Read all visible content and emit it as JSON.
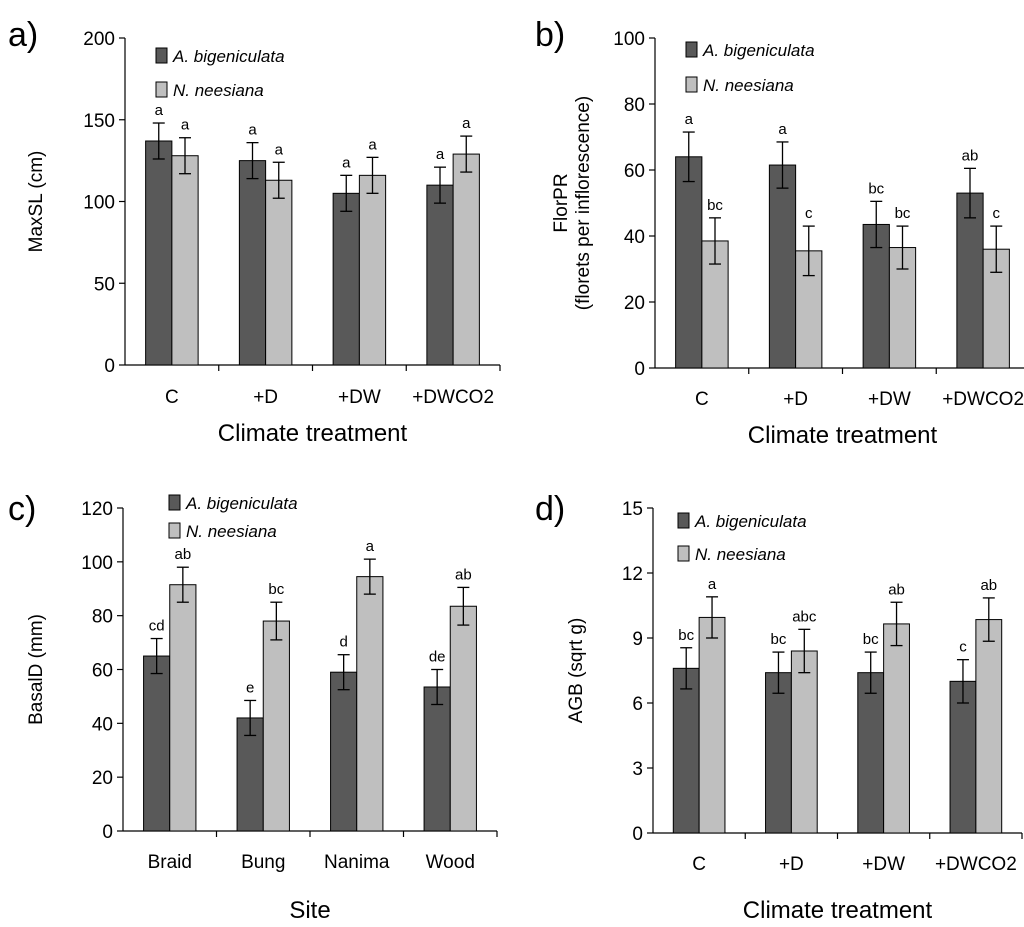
{
  "chart_data": [
    {
      "type": "bar",
      "panel": "a)",
      "title": "",
      "xlabel": "Climate treatment",
      "ylabel": [
        "MaxSL (cm)"
      ],
      "ylim": [
        0,
        200
      ],
      "yticks": [
        0,
        50,
        100,
        150,
        200
      ],
      "categories": [
        "C",
        "+D",
        "+DW",
        "+DWCO2"
      ],
      "legend_position": "top-left",
      "series": [
        {
          "name": "A. bigeniculata",
          "color": "#595959",
          "values": [
            137,
            125,
            105,
            110
          ],
          "errors": [
            11,
            11,
            11,
            11
          ],
          "letters": [
            "a",
            "a",
            "a",
            "a"
          ]
        },
        {
          "name": "N. neesiana",
          "color": "#bfbfbf",
          "values": [
            128,
            113,
            116,
            129
          ],
          "errors": [
            11,
            11,
            11,
            11
          ],
          "letters": [
            "a",
            "a",
            "a",
            "a"
          ]
        }
      ]
    },
    {
      "type": "bar",
      "panel": "b)",
      "title": "",
      "xlabel": "Climate treatment",
      "ylabel": [
        "FlorPR",
        "(florets  per inflorescence)"
      ],
      "ylim": [
        0,
        100
      ],
      "yticks": [
        0,
        20,
        40,
        60,
        80,
        100
      ],
      "categories": [
        "C",
        "+D",
        "+DW",
        "+DWCO2"
      ],
      "legend_position": "top-left",
      "series": [
        {
          "name": "A. bigeniculata",
          "color": "#595959",
          "values": [
            64,
            61.5,
            43.5,
            53
          ],
          "errors": [
            7.5,
            7,
            7,
            7.5
          ],
          "letters": [
            "a",
            "a",
            "bc",
            "ab"
          ]
        },
        {
          "name": "N. neesiana",
          "color": "#bfbfbf",
          "values": [
            38.5,
            35.5,
            36.5,
            36
          ],
          "errors": [
            7,
            7.5,
            6.5,
            7
          ],
          "letters": [
            "bc",
            "c",
            "bc",
            "c"
          ]
        }
      ]
    },
    {
      "type": "bar",
      "panel": "c)",
      "title": "",
      "xlabel": "Site",
      "ylabel": [
        "BasalD (mm)"
      ],
      "ylim": [
        0,
        120
      ],
      "yticks": [
        0,
        20,
        40,
        60,
        80,
        100,
        120
      ],
      "categories": [
        "Braid",
        "Bung",
        "Nanima",
        "Wood"
      ],
      "legend_position": "top-left",
      "series": [
        {
          "name": "A. bigeniculata",
          "color": "#595959",
          "values": [
            65,
            42,
            59,
            53.5
          ],
          "errors": [
            6.5,
            6.5,
            6.5,
            6.5
          ],
          "letters": [
            "cd",
            "e",
            "d",
            "de"
          ]
        },
        {
          "name": "N. neesiana",
          "color": "#bfbfbf",
          "values": [
            91.5,
            78,
            94.5,
            83.5
          ],
          "errors": [
            6.5,
            7,
            6.5,
            7
          ],
          "letters": [
            "ab",
            "bc",
            "a",
            "ab"
          ]
        }
      ]
    },
    {
      "type": "bar",
      "panel": "d)",
      "title": "",
      "xlabel": "Climate treatment",
      "ylabel": [
        "AGB (sqrt g)"
      ],
      "ylim": [
        0,
        15
      ],
      "yticks": [
        0,
        3,
        6,
        9,
        12,
        15
      ],
      "categories": [
        "C",
        "+D",
        "+DW",
        "+DWCO2"
      ],
      "legend_position": "top-left",
      "series": [
        {
          "name": "A. bigeniculata",
          "color": "#595959",
          "values": [
            7.6,
            7.4,
            7.4,
            7.0
          ],
          "errors": [
            0.95,
            0.95,
            0.95,
            1.0
          ],
          "letters": [
            "bc",
            "bc",
            "bc",
            "c"
          ]
        },
        {
          "name": "N. neesiana",
          "color": "#bfbfbf",
          "values": [
            9.95,
            8.4,
            9.65,
            9.85
          ],
          "errors": [
            0.95,
            1.0,
            1.0,
            1.0
          ],
          "letters": [
            "a",
            "abc",
            "ab",
            "ab"
          ]
        }
      ]
    }
  ]
}
